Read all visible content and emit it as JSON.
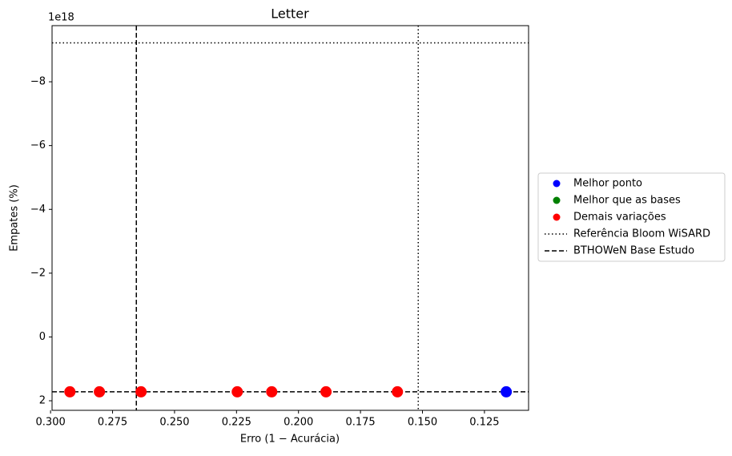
{
  "chart_data": {
    "type": "scatter",
    "title": "Letter",
    "xlabel": "Erro (1 − Acurácia)",
    "ylabel": "Empates (%)",
    "y_offset_label": "1e18",
    "xlim": [
      0.2994,
      0.1072
    ],
    "ylim": [
      2.3,
      -9.76
    ],
    "xticks": [
      {
        "value": 0.3,
        "label": "0.300"
      },
      0.275,
      {
        "value": 0.25,
        "label": "0.250"
      },
      0.225,
      {
        "value": 0.2,
        "label": "0.200"
      },
      0.175,
      {
        "value": 0.15,
        "label": "0.150"
      },
      0.125
    ],
    "yticks": [
      {
        "value": -8,
        "label": "−8"
      },
      {
        "value": -6,
        "label": "−6"
      },
      {
        "value": -4,
        "label": "−4"
      },
      {
        "value": -2,
        "label": "−2"
      },
      0,
      2
    ],
    "series": [
      {
        "name": "Melhor ponto",
        "color": "#0000ff",
        "x": [
          0.1162
        ],
        "values": [
          1.72
        ]
      },
      {
        "name": "Melhor que as bases",
        "color": "#008000",
        "x": [],
        "values": []
      },
      {
        "name": "Demais variações",
        "color": "#ff0000",
        "x": [
          0.2922,
          0.2803,
          0.2635,
          0.2247,
          0.2108,
          0.1889,
          0.1601
        ],
        "values": [
          1.72,
          1.72,
          1.72,
          1.72,
          1.72,
          1.72,
          1.72
        ]
      }
    ],
    "reference_lines": [
      {
        "name": "Referência Bloom WiSARD",
        "style": "dotted",
        "x": 0.1517,
        "y": -9.22
      },
      {
        "name": "BTHOWeN Base Estudo",
        "style": "dashed",
        "x": 0.2654,
        "y": 1.72
      }
    ],
    "legend": "right"
  }
}
